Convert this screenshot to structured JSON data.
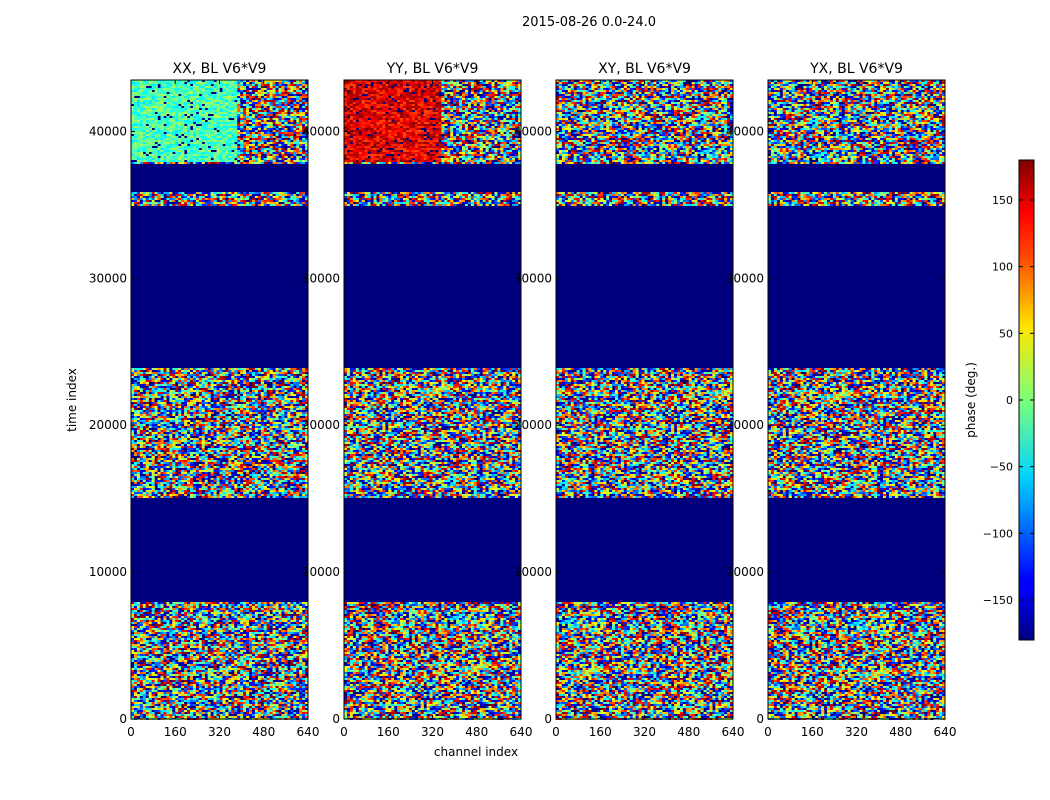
{
  "figure": {
    "suptitle": "2015-08-26 0.0-24.0"
  },
  "chart_data": {
    "type": "heatmap",
    "title": "2015-08-26 0.0-24.0",
    "xlabel": "channel index",
    "ylabel": "time index",
    "xlim": [
      0,
      640
    ],
    "ylim": [
      0,
      43500
    ],
    "xticks": [
      0,
      160,
      320,
      480,
      640
    ],
    "yticks": [
      0,
      10000,
      20000,
      30000,
      40000
    ],
    "panels": [
      {
        "title": "XX, BL V6*V9",
        "pol": "XX"
      },
      {
        "title": "YY, BL V6*V9",
        "pol": "YY"
      },
      {
        "title": "XY, BL V6*V9",
        "pol": "XY"
      },
      {
        "title": "YX, BL V6*V9",
        "pol": "YX"
      }
    ],
    "flagged_time_ranges": [
      [
        8100,
        15100
      ],
      [
        23900,
        35000
      ],
      [
        35900,
        37800
      ]
    ],
    "colorbar": {
      "label": "phase (deg.)",
      "range": [
        -180,
        180
      ],
      "ticks": [
        -150,
        -100,
        -50,
        0,
        50,
        100,
        150
      ],
      "tick_labels": [
        "−150",
        "−100",
        "−50",
        "0",
        "50",
        "100",
        "150"
      ],
      "colormap": "jet"
    }
  },
  "colors": {
    "flagged": "#00007f",
    "axis": "#000000"
  }
}
